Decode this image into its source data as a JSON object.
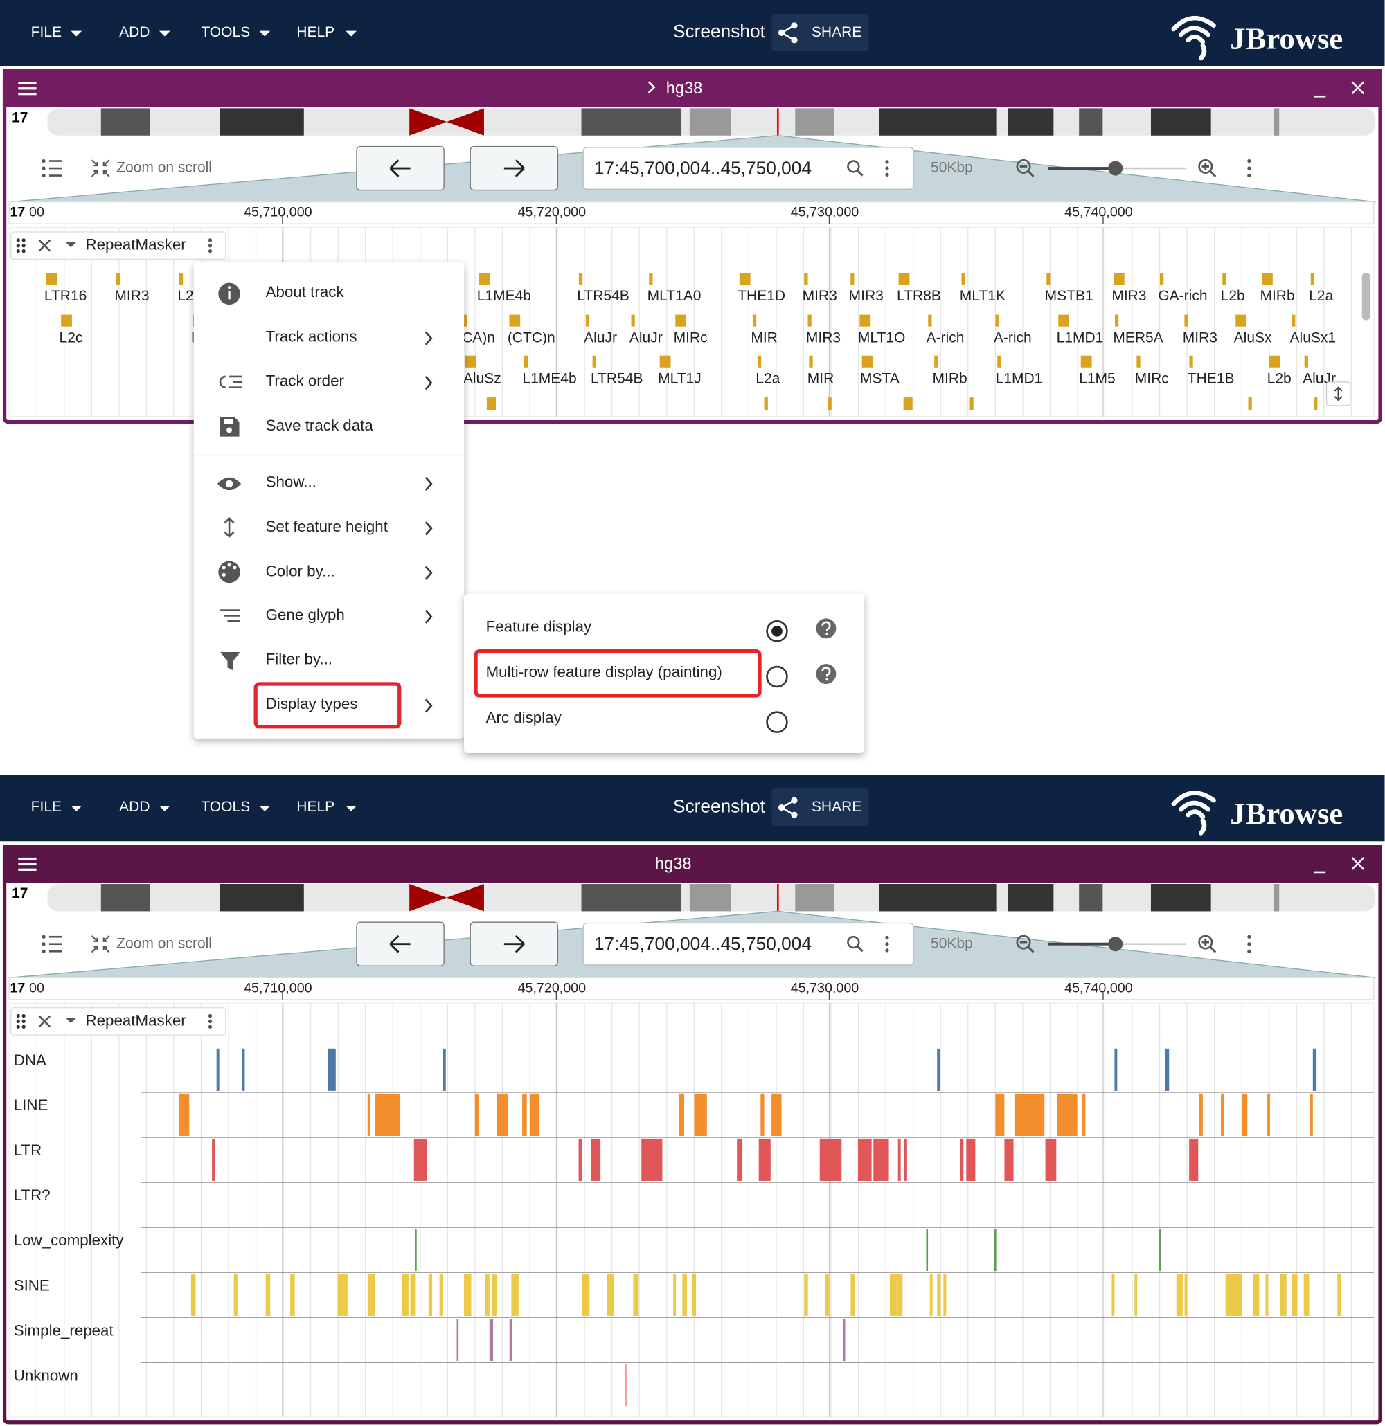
{
  "headers": [
    {
      "menu": [
        "FILE",
        "ADD",
        "TOOLS",
        "HELP"
      ],
      "screenshot": "Screenshot",
      "share": "SHARE",
      "logo": "JBrowse"
    },
    {
      "menu": [
        "FILE",
        "ADD",
        "TOOLS",
        "HELP"
      ],
      "screenshot": "Screenshot",
      "share": "SHARE",
      "logo": "JBrowse"
    }
  ],
  "views": [
    {
      "title": "hg38",
      "chromosome": "17",
      "zoom_on_scroll": "Zoom on scroll",
      "location": "17:45,700,004..45,750,004",
      "span": "50Kbp",
      "ruler_chrom": "17",
      "ruler_partial": "00",
      "ruler": [
        "45,710,000",
        "45,720,000",
        "45,730,000",
        "45,740,000"
      ],
      "track": "RepeatMasker",
      "feature_rows": [
        [
          "LTR16",
          "MIR3",
          "L2",
          "L1ME4b",
          "LTR54B",
          "MLT1A0",
          "THE1D",
          "MIR3",
          "MIR3",
          "LTR8B",
          "MLT1K",
          "MSTB1",
          "MIR3",
          "GA-rich",
          "L2b",
          "MIRb",
          "L2a"
        ],
        [
          "L2c",
          "l",
          "CA)n",
          "(CTC)n",
          "AluJr",
          "AluJr",
          "MIRc",
          "MIR",
          "MIR3",
          "MLT1O",
          "A-rich",
          "A-rich",
          "L1MD1",
          "MER5A",
          "MIR3",
          "AluSx",
          "AluSx1"
        ],
        [
          "AluSz",
          "L1ME4b",
          "LTR54B",
          "MLT1J",
          "L2a",
          "MIR",
          "MSTA",
          "MIRb",
          "L1MD1",
          "L1M5",
          "MIRc",
          "THE1B",
          "L2b",
          "AluJr"
        ]
      ],
      "track_menu": [
        "About track",
        "Track actions",
        "Track order",
        "Save track data",
        "Show...",
        "Set feature height",
        "Color by...",
        "Gene glyph",
        "Filter by...",
        "Display types"
      ],
      "display_types": [
        "Feature display",
        "Multi-row feature display (painting)",
        "Arc display"
      ]
    },
    {
      "title": "hg38",
      "chromosome": "17",
      "zoom_on_scroll": "Zoom on scroll",
      "location": "17:45,700,004..45,750,004",
      "span": "50Kbp",
      "ruler_chrom": "17",
      "ruler_partial": "00",
      "ruler": [
        "45,710,000",
        "45,720,000",
        "45,730,000",
        "45,740,000"
      ],
      "track": "RepeatMasker",
      "row_labels": [
        "DNA",
        "LINE",
        "LTR",
        "LTR?",
        "Low_complexity",
        "SINE",
        "Simple_repeat",
        "Unknown"
      ]
    }
  ]
}
